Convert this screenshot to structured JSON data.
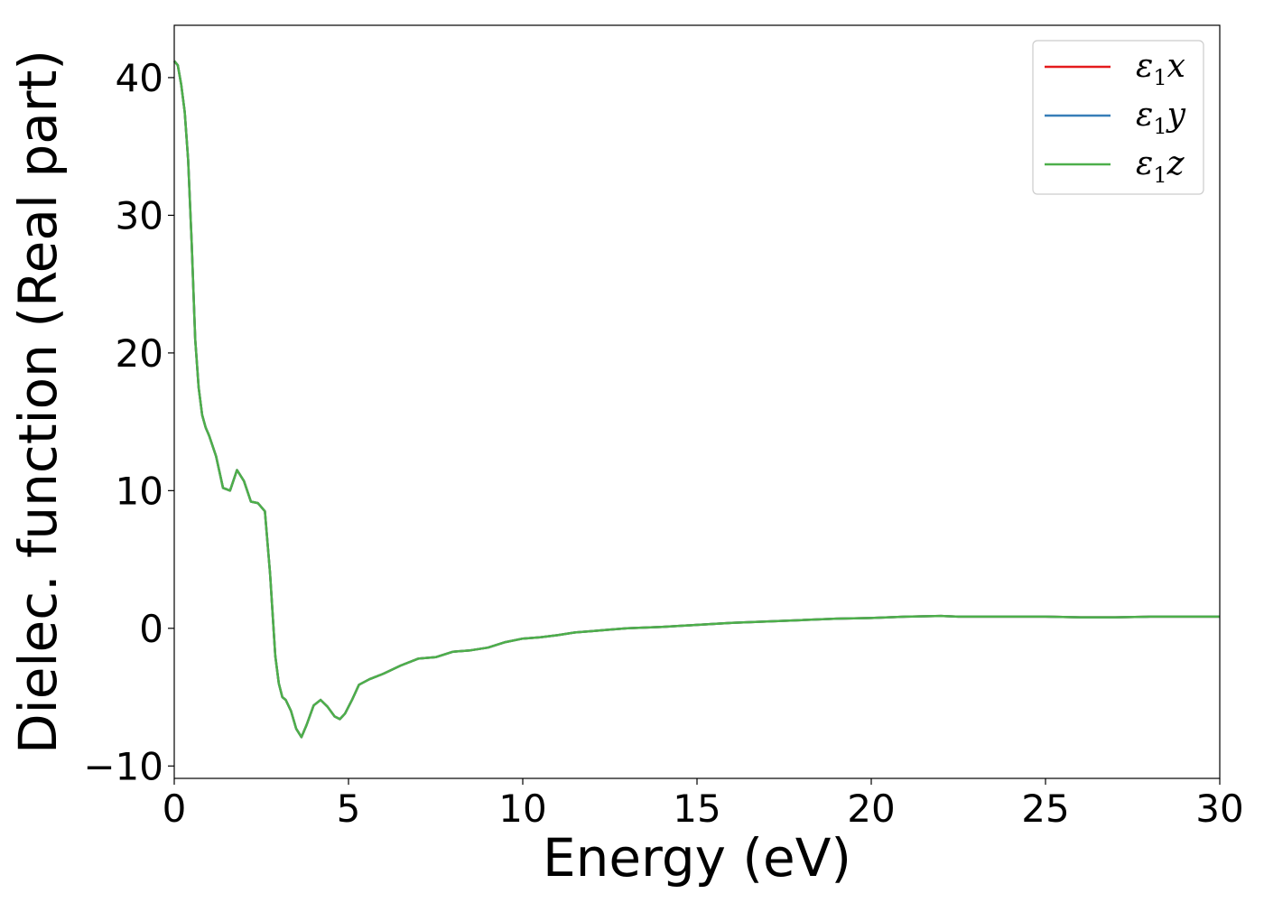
{
  "chart_data": {
    "type": "line",
    "xlabel": "Energy (eV)",
    "ylabel": "Dielec. function (Real part)",
    "xlim": [
      0,
      30
    ],
    "ylim": [
      -10.9,
      43.8
    ],
    "xticks": [
      0,
      5,
      10,
      15,
      20,
      25,
      30
    ],
    "xtick_labels": [
      "0",
      "5",
      "10",
      "15",
      "20",
      "25",
      "30"
    ],
    "yticks": [
      -10,
      0,
      10,
      20,
      30,
      40
    ],
    "ytick_labels": [
      "−10",
      "0",
      "10",
      "20",
      "30",
      "40"
    ],
    "grid": false,
    "legend": {
      "position": "top-right",
      "entries": [
        {
          "base": "ε",
          "sub": "1",
          "suffix": "x"
        },
        {
          "base": "ε",
          "sub": "1",
          "suffix": "y"
        },
        {
          "base": "ε",
          "sub": "1",
          "suffix": "z"
        }
      ]
    },
    "series": [
      {
        "color": "#e41a1c",
        "x": [
          0,
          0.1,
          0.2,
          0.3,
          0.4,
          0.5,
          0.6,
          0.7,
          0.8,
          0.9,
          1.0,
          1.2,
          1.4,
          1.6,
          1.8,
          2.0,
          2.2,
          2.4,
          2.6,
          2.75,
          2.9,
          3.0,
          3.1,
          3.2,
          3.35,
          3.5,
          3.65,
          3.8,
          4.0,
          4.2,
          4.4,
          4.6,
          4.75,
          4.9,
          5.1,
          5.3,
          5.6,
          6.0,
          6.5,
          7.0,
          7.5,
          8.0,
          8.5,
          9.0,
          9.5,
          10.0,
          10.5,
          11.0,
          11.5,
          12.0,
          12.5,
          13.0,
          14.0,
          15.0,
          16.0,
          17.0,
          18.0,
          19.0,
          20.0,
          21.0,
          22.0,
          22.5,
          23.0,
          24.0,
          25.0,
          26.0,
          27.0,
          28.0,
          29.0,
          30.0
        ],
        "y": [
          41.2,
          40.9,
          39.5,
          37.5,
          34.0,
          28.0,
          21.0,
          17.5,
          15.5,
          14.6,
          14.0,
          12.5,
          10.2,
          10.0,
          11.5,
          10.7,
          9.2,
          9.1,
          8.5,
          4.0,
          -2.0,
          -4.0,
          -5.0,
          -5.2,
          -6.0,
          -7.3,
          -7.9,
          -7.0,
          -5.6,
          -5.2,
          -5.7,
          -6.4,
          -6.6,
          -6.2,
          -5.2,
          -4.1,
          -3.7,
          -3.3,
          -2.7,
          -2.2,
          -2.1,
          -1.7,
          -1.6,
          -1.4,
          -1.0,
          -0.75,
          -0.65,
          -0.5,
          -0.3,
          -0.2,
          -0.1,
          0.0,
          0.1,
          0.25,
          0.4,
          0.5,
          0.6,
          0.7,
          0.75,
          0.85,
          0.9,
          0.85,
          0.85,
          0.85,
          0.85,
          0.8,
          0.8,
          0.85,
          0.85,
          0.85
        ]
      },
      {
        "color": "#377eb8",
        "x": [
          0,
          0.1,
          0.2,
          0.3,
          0.4,
          0.5,
          0.6,
          0.7,
          0.8,
          0.9,
          1.0,
          1.2,
          1.4,
          1.6,
          1.8,
          2.0,
          2.2,
          2.4,
          2.6,
          2.75,
          2.9,
          3.0,
          3.1,
          3.2,
          3.35,
          3.5,
          3.65,
          3.8,
          4.0,
          4.2,
          4.4,
          4.6,
          4.75,
          4.9,
          5.1,
          5.3,
          5.6,
          6.0,
          6.5,
          7.0,
          7.5,
          8.0,
          8.5,
          9.0,
          9.5,
          10.0,
          10.5,
          11.0,
          11.5,
          12.0,
          12.5,
          13.0,
          14.0,
          15.0,
          16.0,
          17.0,
          18.0,
          19.0,
          20.0,
          21.0,
          22.0,
          22.5,
          23.0,
          24.0,
          25.0,
          26.0,
          27.0,
          28.0,
          29.0,
          30.0
        ],
        "y": [
          41.2,
          40.9,
          39.5,
          37.5,
          34.0,
          28.0,
          21.0,
          17.5,
          15.5,
          14.6,
          14.0,
          12.5,
          10.2,
          10.0,
          11.5,
          10.7,
          9.2,
          9.1,
          8.5,
          4.0,
          -2.0,
          -4.0,
          -5.0,
          -5.2,
          -6.0,
          -7.3,
          -7.9,
          -7.0,
          -5.6,
          -5.2,
          -5.7,
          -6.4,
          -6.6,
          -6.2,
          -5.2,
          -4.1,
          -3.7,
          -3.3,
          -2.7,
          -2.2,
          -2.1,
          -1.7,
          -1.6,
          -1.4,
          -1.0,
          -0.75,
          -0.65,
          -0.5,
          -0.3,
          -0.2,
          -0.1,
          0.0,
          0.1,
          0.25,
          0.4,
          0.5,
          0.6,
          0.7,
          0.75,
          0.85,
          0.9,
          0.85,
          0.85,
          0.85,
          0.85,
          0.8,
          0.8,
          0.85,
          0.85,
          0.85
        ]
      },
      {
        "color": "#4daf4a",
        "x": [
          0,
          0.1,
          0.2,
          0.3,
          0.4,
          0.5,
          0.6,
          0.7,
          0.8,
          0.9,
          1.0,
          1.2,
          1.4,
          1.6,
          1.8,
          2.0,
          2.2,
          2.4,
          2.6,
          2.75,
          2.9,
          3.0,
          3.1,
          3.2,
          3.35,
          3.5,
          3.65,
          3.8,
          4.0,
          4.2,
          4.4,
          4.6,
          4.75,
          4.9,
          5.1,
          5.3,
          5.6,
          6.0,
          6.5,
          7.0,
          7.5,
          8.0,
          8.5,
          9.0,
          9.5,
          10.0,
          10.5,
          11.0,
          11.5,
          12.0,
          12.5,
          13.0,
          14.0,
          15.0,
          16.0,
          17.0,
          18.0,
          19.0,
          20.0,
          21.0,
          22.0,
          22.5,
          23.0,
          24.0,
          25.0,
          26.0,
          27.0,
          28.0,
          29.0,
          30.0
        ],
        "y": [
          41.2,
          40.9,
          39.5,
          37.5,
          34.0,
          28.0,
          21.0,
          17.5,
          15.5,
          14.6,
          14.0,
          12.5,
          10.2,
          10.0,
          11.5,
          10.7,
          9.2,
          9.1,
          8.5,
          4.0,
          -2.0,
          -4.0,
          -5.0,
          -5.2,
          -6.0,
          -7.3,
          -7.9,
          -7.0,
          -5.6,
          -5.2,
          -5.7,
          -6.4,
          -6.6,
          -6.2,
          -5.2,
          -4.1,
          -3.7,
          -3.3,
          -2.7,
          -2.2,
          -2.1,
          -1.7,
          -1.6,
          -1.4,
          -1.0,
          -0.75,
          -0.65,
          -0.5,
          -0.3,
          -0.2,
          -0.1,
          0.0,
          0.1,
          0.25,
          0.4,
          0.5,
          0.6,
          0.7,
          0.75,
          0.85,
          0.9,
          0.85,
          0.85,
          0.85,
          0.85,
          0.8,
          0.8,
          0.85,
          0.85,
          0.85
        ]
      }
    ]
  }
}
